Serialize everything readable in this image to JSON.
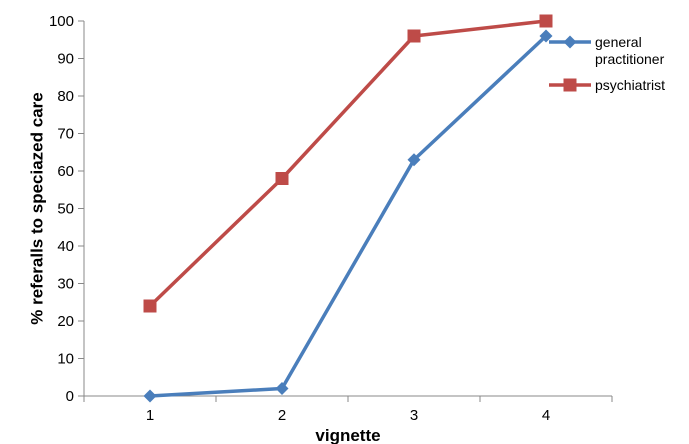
{
  "chart_data": {
    "type": "line",
    "title": "",
    "xlabel": "vignette",
    "ylabel": "% referalls to speciazed care",
    "categories": [
      "1",
      "2",
      "3",
      "4"
    ],
    "ylim": [
      0,
      100
    ],
    "yticks": [
      0,
      10,
      20,
      30,
      40,
      50,
      60,
      70,
      80,
      90,
      100
    ],
    "grid": false,
    "legend_position": "top-right",
    "series": [
      {
        "name_lines": [
          "general",
          "practitioner"
        ],
        "marker": "diamond",
        "color": "#4a7ebb",
        "values": [
          0,
          2,
          63,
          96
        ]
      },
      {
        "name_lines": [
          "psychiatrist"
        ],
        "marker": "square",
        "color": "#be4b48",
        "values": [
          24,
          58,
          96,
          100
        ]
      }
    ]
  }
}
